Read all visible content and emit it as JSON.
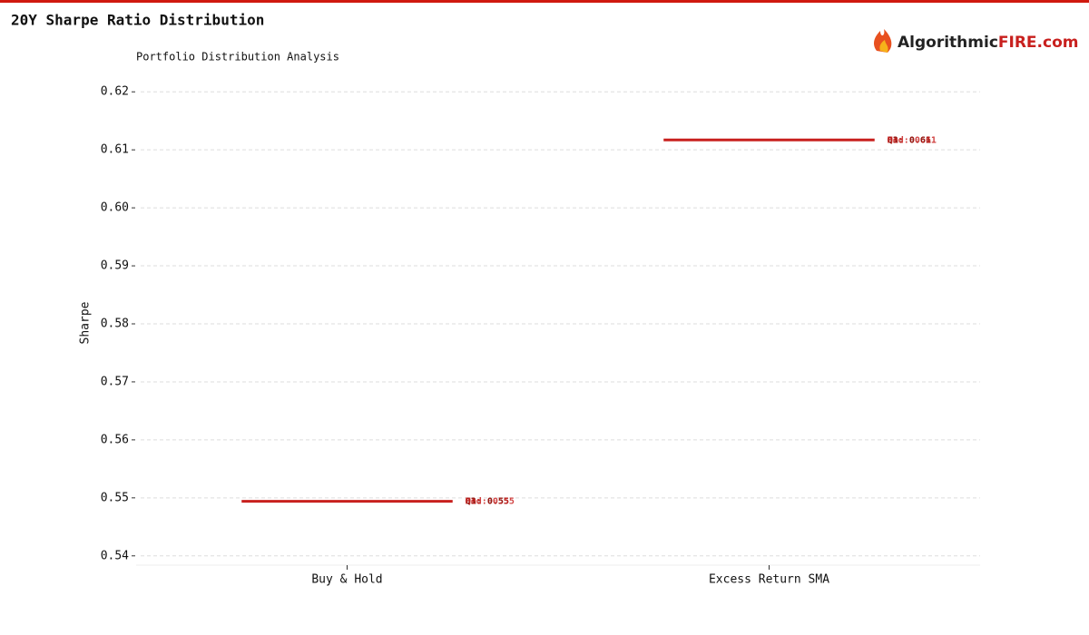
{
  "brand": {
    "name": "Algorithmic",
    "highlight": "FIRE.com"
  },
  "chart_data": {
    "type": "box",
    "title": "20Y Sharpe Ratio Distribution",
    "subtitle": "Portfolio Distribution Analysis",
    "ylabel": "Sharpe",
    "color": "#c8201e",
    "grid": true,
    "categories": [
      "Buy & Hold",
      "Excess Return SMA"
    ],
    "boxes": [
      {
        "q1": 0.5494,
        "median": 0.5494,
        "q3": 0.5494,
        "labels": {
          "q1": "Q1: 0.55",
          "median": "Med: 0.55",
          "q3": "Q3: 0.55"
        }
      },
      {
        "q1": 0.6117,
        "median": 0.6117,
        "q3": 0.6117,
        "labels": {
          "q1": "Q1: 0.61",
          "median": "Med: 0.61",
          "q3": "Q3: 0.61"
        }
      }
    ],
    "ylim": [
      0.5384,
      0.6216
    ],
    "yticks": [
      0.54,
      0.55,
      0.56,
      0.57,
      0.58,
      0.59,
      {
        "value": 0.6,
        "label": "0.60"
      },
      0.61,
      0.62
    ]
  }
}
